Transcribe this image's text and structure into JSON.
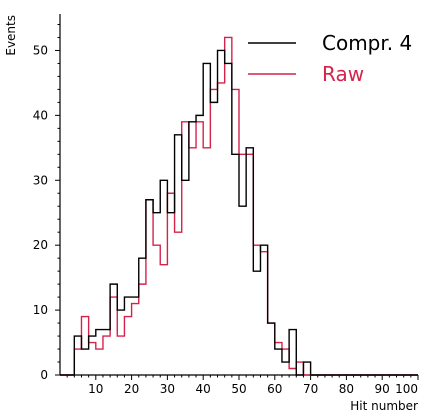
{
  "chart_data": {
    "type": "step-histogram",
    "title": "",
    "xlabel": "Hit number",
    "ylabel": "Events",
    "xlim": [
      0,
      100
    ],
    "ylim": [
      0,
      55
    ],
    "bin_width": 2,
    "legend_position": "top-right",
    "grid": false,
    "x_ticks": [
      10,
      20,
      30,
      40,
      50,
      60,
      70,
      80,
      90,
      100
    ],
    "y_ticks": [
      0,
      10,
      20,
      30,
      40,
      50
    ],
    "series": [
      {
        "name": "Compr. 4",
        "color": "#000000",
        "bin_lefts": [
          0,
          2,
          4,
          6,
          8,
          10,
          12,
          14,
          16,
          18,
          20,
          22,
          24,
          26,
          28,
          30,
          32,
          34,
          36,
          38,
          40,
          42,
          44,
          46,
          48,
          50,
          52,
          54,
          56,
          58,
          60,
          62,
          64,
          66,
          68,
          70,
          72,
          74,
          76,
          78,
          80,
          82,
          84,
          86,
          88,
          90,
          92,
          94,
          96,
          98
        ],
        "values": [
          0,
          0,
          6,
          4,
          6,
          7,
          7,
          14,
          10,
          12,
          12,
          18,
          27,
          25,
          30,
          25,
          37,
          30,
          39,
          40,
          48,
          42,
          50,
          48,
          34,
          26,
          35,
          16,
          20,
          8,
          4,
          2,
          7,
          0,
          2,
          0,
          0,
          0,
          0,
          0,
          0,
          0,
          0,
          0,
          0,
          0,
          0,
          0,
          0,
          0
        ]
      },
      {
        "name": "Raw",
        "color": "#d4234b",
        "bin_lefts": [
          0,
          2,
          4,
          6,
          8,
          10,
          12,
          14,
          16,
          18,
          20,
          22,
          24,
          26,
          28,
          30,
          32,
          34,
          36,
          38,
          40,
          42,
          44,
          46,
          48,
          50,
          52,
          54,
          56,
          58,
          60,
          62,
          64,
          66,
          68,
          70,
          72,
          74,
          76,
          78,
          80,
          82,
          84,
          86,
          88,
          90,
          92,
          94,
          96,
          98
        ],
        "values": [
          0,
          0,
          4,
          9,
          5,
          4,
          6,
          12,
          6,
          9,
          11,
          14,
          27,
          20,
          17,
          28,
          22,
          39,
          35,
          39,
          35,
          44,
          45,
          52,
          44,
          34,
          34,
          20,
          19,
          8,
          5,
          4,
          1,
          2,
          0,
          0,
          0,
          0,
          0,
          0,
          0,
          0,
          0,
          0,
          0,
          0,
          0,
          0,
          0,
          0
        ]
      }
    ]
  }
}
